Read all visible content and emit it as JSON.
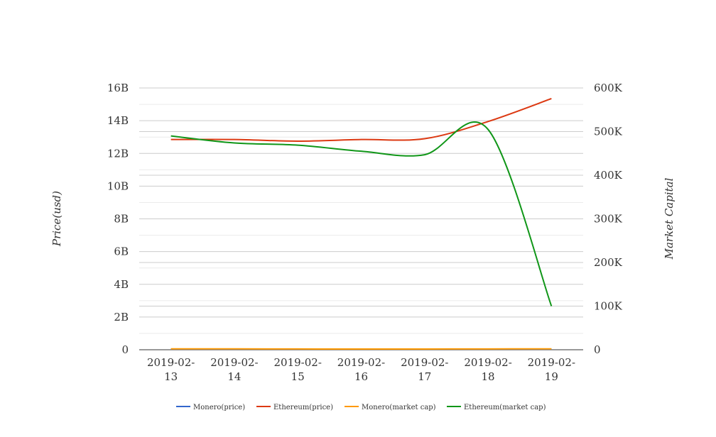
{
  "chart_data": {
    "type": "line",
    "categories": [
      "2019-02-13",
      "2019-02-14",
      "2019-02-15",
      "2019-02-16",
      "2019-02-17",
      "2019-02-18",
      "2019-02-19"
    ],
    "category_labels": [
      [
        "2019-02-",
        "13"
      ],
      [
        "2019-02-",
        "14"
      ],
      [
        "2019-02-",
        "15"
      ],
      [
        "2019-02-",
        "16"
      ],
      [
        "2019-02-",
        "17"
      ],
      [
        "2019-02-",
        "18"
      ],
      [
        "2019-02-",
        "19"
      ]
    ],
    "y_left": {
      "label": "Price(usd)",
      "min": 0,
      "max": 16000000000,
      "ticks": [
        0,
        2000000000,
        4000000000,
        6000000000,
        8000000000,
        10000000000,
        12000000000,
        14000000000,
        16000000000
      ],
      "tick_labels": [
        "0",
        "2B",
        "4B",
        "6B",
        "8B",
        "10B",
        "12B",
        "14B",
        "16B"
      ]
    },
    "y_right": {
      "label": "Market Capital",
      "min": 0,
      "max": 600000,
      "ticks": [
        0,
        100000,
        200000,
        300000,
        400000,
        500000,
        600000
      ],
      "tick_labels": [
        "0",
        "100K",
        "200K",
        "300K",
        "400K",
        "500K",
        "600K"
      ]
    },
    "series": [
      {
        "name": "Monero(price)",
        "axis": "left",
        "color": "#3366cc",
        "values": [
          45000000,
          45000000,
          45000000,
          44000000,
          44000000,
          45000000,
          45000000
        ]
      },
      {
        "name": "Ethereum(price)",
        "axis": "left",
        "color": "#dc3912",
        "values": [
          12850000000,
          12850000000,
          12750000000,
          12850000000,
          12900000000,
          13950000000,
          15350000000
        ]
      },
      {
        "name": "Monero(market cap)",
        "axis": "right",
        "color": "#ff9900",
        "values": [
          2000,
          2000,
          1800,
          1600,
          1700,
          1900,
          2000
        ]
      },
      {
        "name": "Ethereum(market cap)",
        "axis": "right",
        "color": "#109618",
        "values": [
          490000,
          474000,
          469000,
          455000,
          447000,
          505000,
          100000
        ]
      }
    ],
    "legend_position": "bottom",
    "grid": true
  }
}
